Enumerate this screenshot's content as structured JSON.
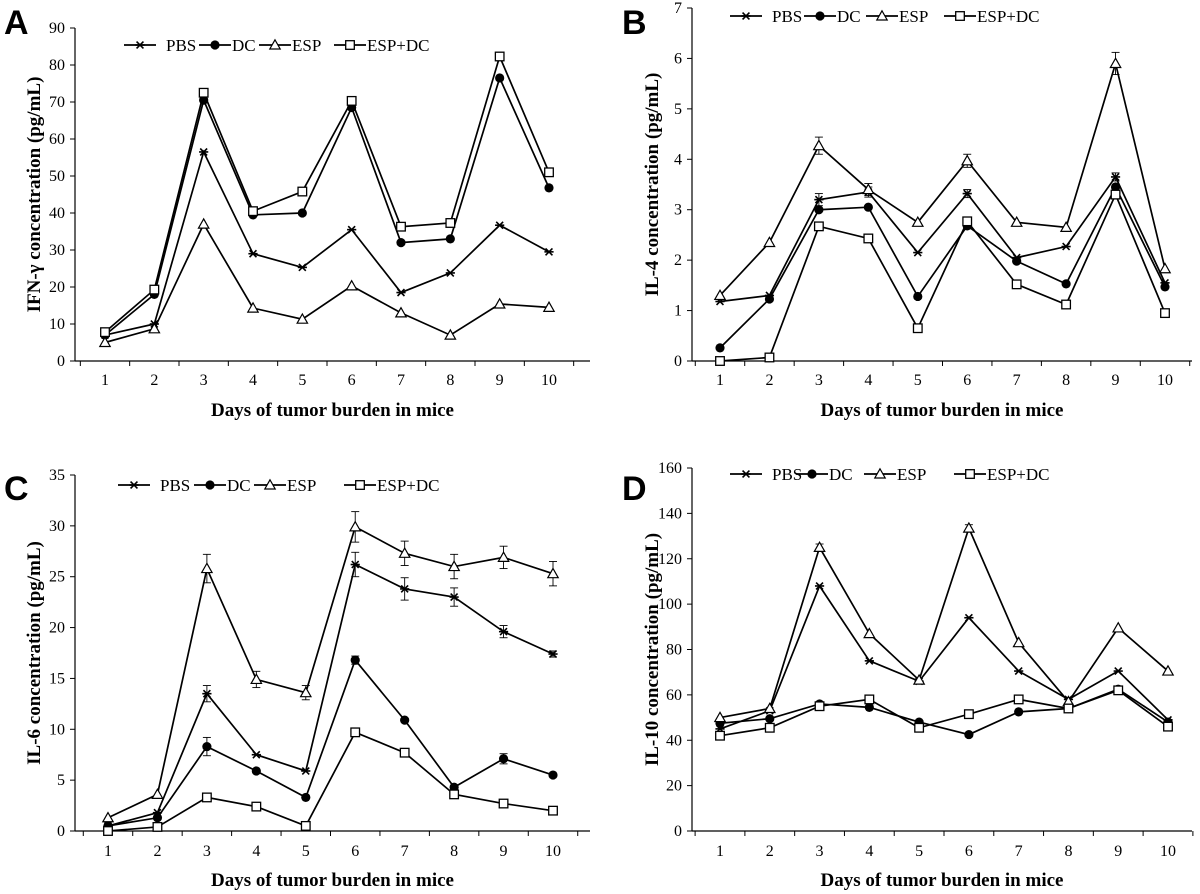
{
  "chart_data": [
    {
      "type": "line",
      "panel_letter": "A",
      "title": "",
      "xlabel": "Days of tumor burden in mice",
      "ylabel": "IFN-γ concentration (pg/mL)",
      "categories": [
        "1",
        "2",
        "3",
        "4",
        "5",
        "6",
        "7",
        "8",
        "9",
        "10"
      ],
      "ylim": [
        0,
        90
      ],
      "yticks": [
        0,
        10,
        20,
        30,
        40,
        50,
        60,
        70,
        80,
        90
      ],
      "legend_position": "top-center",
      "series": [
        {
          "name": "PBS",
          "marker": "star",
          "values": [
            7,
            10,
            56.5,
            29,
            25.3,
            35.5,
            18.5,
            23.8,
            36.7,
            29.5
          ],
          "errors": [
            0,
            0,
            0,
            0,
            0,
            0,
            0,
            0,
            0,
            0
          ]
        },
        {
          "name": "DC",
          "marker": "circle",
          "values": [
            7,
            18,
            70.5,
            39.5,
            40,
            68.5,
            32,
            33,
            76.5,
            46.8
          ],
          "errors": [
            0,
            0,
            0,
            0,
            0,
            0,
            0,
            0,
            0,
            0
          ]
        },
        {
          "name": "ESP",
          "marker": "triangle",
          "values": [
            5,
            8.7,
            37,
            14.3,
            11.3,
            20.3,
            13,
            7,
            15.4,
            14.5
          ],
          "errors": [
            0,
            0,
            0,
            0,
            0,
            0,
            0,
            0,
            0,
            0
          ]
        },
        {
          "name": "ESP+DC",
          "marker": "square",
          "values": [
            7.8,
            19.3,
            72.5,
            40.5,
            45.8,
            70.3,
            36.3,
            37.3,
            82.3,
            51
          ],
          "errors": [
            0,
            0,
            0,
            0,
            0,
            0,
            0,
            0,
            0,
            0
          ]
        }
      ]
    },
    {
      "type": "line",
      "panel_letter": "B",
      "title": "",
      "xlabel": "Days of tumor burden in mice",
      "ylabel": "IL-4 concentration (pg/mL)",
      "categories": [
        "1",
        "2",
        "3",
        "4",
        "5",
        "6",
        "7",
        "8",
        "9",
        "10"
      ],
      "ylim": [
        0,
        7
      ],
      "yticks": [
        0,
        1,
        2,
        3,
        4,
        5,
        6,
        7
      ],
      "legend_position": "top-center",
      "series": [
        {
          "name": "PBS",
          "marker": "star",
          "values": [
            1.18,
            1.3,
            3.2,
            3.35,
            2.15,
            3.32,
            2.05,
            2.27,
            3.65,
            1.55
          ],
          "errors": [
            0,
            0,
            0.12,
            0.1,
            0,
            0.08,
            0,
            0,
            0.08,
            0
          ]
        },
        {
          "name": "DC",
          "marker": "circle",
          "values": [
            0.26,
            1.23,
            3,
            3.05,
            1.28,
            2.68,
            1.98,
            1.53,
            3.45,
            1.47
          ],
          "errors": [
            0,
            0,
            0,
            0,
            0,
            0,
            0,
            0,
            0,
            0
          ]
        },
        {
          "name": "ESP",
          "marker": "triangle",
          "values": [
            1.3,
            2.35,
            4.27,
            3.4,
            2.75,
            3.97,
            2.75,
            2.65,
            5.9,
            1.83
          ],
          "errors": [
            0,
            0,
            0.17,
            0.12,
            0,
            0.13,
            0,
            0,
            0.22,
            0
          ]
        },
        {
          "name": "ESP+DC",
          "marker": "square",
          "values": [
            0,
            0.07,
            2.67,
            2.43,
            0.65,
            2.77,
            1.52,
            1.12,
            3.3,
            0.95
          ],
          "errors": [
            0,
            0,
            0,
            0,
            0,
            0,
            0,
            0,
            0,
            0
          ]
        }
      ]
    },
    {
      "type": "line",
      "panel_letter": "C",
      "title": "",
      "xlabel": "Days of tumor burden in mice",
      "ylabel": "IL-6 concentration (pg/mL)",
      "categories": [
        "1",
        "2",
        "3",
        "4",
        "5",
        "6",
        "7",
        "8",
        "9",
        "10"
      ],
      "ylim": [
        0,
        35
      ],
      "yticks": [
        0,
        5,
        10,
        15,
        20,
        25,
        30,
        35
      ],
      "legend_position": "top-center",
      "series": [
        {
          "name": "PBS",
          "marker": "star",
          "values": [
            0.5,
            1.8,
            13.5,
            7.5,
            5.9,
            26.2,
            23.8,
            23,
            19.6,
            17.4
          ],
          "errors": [
            0,
            0,
            0.8,
            0,
            0,
            1.2,
            1.1,
            0.9,
            0.6,
            0.3
          ]
        },
        {
          "name": "DC",
          "marker": "circle",
          "values": [
            0.5,
            1.3,
            8.3,
            5.9,
            3.3,
            16.8,
            10.9,
            4.3,
            7.1,
            5.5
          ],
          "errors": [
            0,
            0,
            0.9,
            0,
            0,
            0.4,
            0,
            0,
            0.5,
            0
          ]
        },
        {
          "name": "ESP",
          "marker": "triangle",
          "values": [
            1.3,
            3.6,
            25.8,
            14.9,
            13.6,
            29.9,
            27.3,
            26,
            26.9,
            25.3
          ],
          "errors": [
            0,
            0,
            1.4,
            0.8,
            0.7,
            1.5,
            1.2,
            1.2,
            1.1,
            1.2
          ]
        },
        {
          "name": "ESP+DC",
          "marker": "square",
          "values": [
            0,
            0.4,
            3.3,
            2.4,
            0.5,
            9.7,
            7.7,
            3.6,
            2.7,
            2
          ]
        }
      ]
    },
    {
      "type": "line",
      "panel_letter": "D",
      "title": "",
      "xlabel": "Days of tumor burden in mice",
      "ylabel": "IL-10 concentration (pg/mL)",
      "categories": [
        "1",
        "2",
        "3",
        "4",
        "5",
        "6",
        "7",
        "8",
        "9",
        "10"
      ],
      "ylim": [
        0,
        160
      ],
      "yticks": [
        0,
        20,
        40,
        60,
        80,
        100,
        120,
        140,
        160
      ],
      "legend_position": "top-center",
      "series": [
        {
          "name": "PBS",
          "marker": "star",
          "values": [
            45,
            53,
            108,
            75,
            66,
            94,
            70.5,
            58,
            70.5,
            49
          ],
          "errors": [
            0,
            0,
            0,
            0,
            0,
            0,
            0,
            0,
            0,
            0
          ]
        },
        {
          "name": "DC",
          "marker": "circle",
          "values": [
            47.5,
            49.5,
            56,
            54.5,
            48,
            42.5,
            52.5,
            54,
            62.5,
            48
          ],
          "errors": [
            0,
            0,
            0,
            0,
            0,
            0,
            0,
            0,
            0,
            0
          ]
        },
        {
          "name": "ESP",
          "marker": "triangle",
          "values": [
            50,
            54,
            125,
            87,
            66.5,
            133.5,
            83,
            57,
            89.5,
            70.5
          ],
          "errors": [
            0,
            0,
            1.5,
            0,
            0,
            1.5,
            0,
            0,
            0,
            0
          ]
        },
        {
          "name": "ESP+DC",
          "marker": "square",
          "values": [
            42,
            45.5,
            55,
            58,
            45.5,
            51.5,
            58,
            54,
            62,
            46
          ],
          "errors": [
            0,
            0,
            0,
            0,
            0,
            0,
            0,
            0,
            0,
            0
          ]
        }
      ]
    }
  ]
}
